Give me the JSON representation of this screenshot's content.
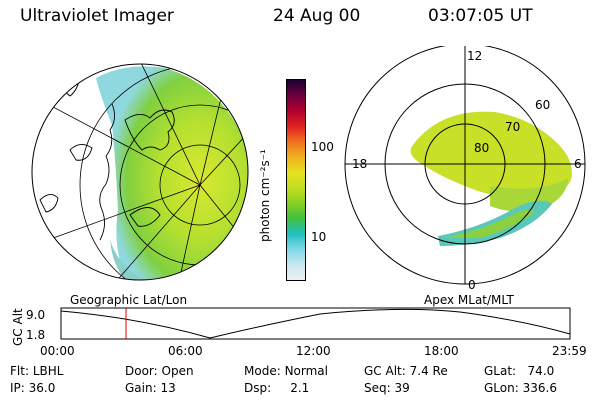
{
  "header": {
    "title": "Ultraviolet Imager",
    "date": "24 Aug 00",
    "time": "03:07:05 UT"
  },
  "colorbar": {
    "label": "photon cm⁻²s⁻¹",
    "ticks": [
      "100",
      "10"
    ],
    "colors": [
      "#1a0030",
      "#6a0040",
      "#b00030",
      "#e02020",
      "#f07020",
      "#f0b020",
      "#e8e020",
      "#c0e020",
      "#88d020",
      "#40c040",
      "#20c0c0",
      "#80d8e8",
      "#c8e8f0",
      "#f0f0f0"
    ]
  },
  "geo_panel": {
    "label": "Geographic Lat/Lon",
    "aurora_color": "#9ad82c"
  },
  "polar_panel": {
    "label": "Apex MLat/MLT",
    "lat_labels": [
      "80",
      "70",
      "60"
    ],
    "mlt_labels": [
      "12",
      "18",
      "6",
      "0"
    ]
  },
  "altitude_plot": {
    "ylabel": "GC Alt",
    "yticks": [
      "9.0",
      "1.8"
    ],
    "xticks": [
      "00:00",
      "06:00",
      "12:00",
      "18:00",
      "23:59"
    ],
    "marker_time": "03:07",
    "marker_color": "#e00000"
  },
  "info": {
    "flt_label": "Flt:",
    "flt_value": "LBHL",
    "ip_label": "IP:",
    "ip_value": "36.0",
    "door_label": "Door:",
    "door_value": "Open",
    "gain_label": "Gain:",
    "gain_value": "13",
    "mode_label": "Mode:",
    "mode_value": "Normal",
    "dsp_label": "Dsp:",
    "dsp_value": "2.1",
    "gcalt_label": "GC Alt:",
    "gcalt_value": "7.4 Re",
    "seq_label": "Seq:",
    "seq_value": "39",
    "glat_label": "GLat:",
    "glat_value": "74.0",
    "glon_label": "GLon:",
    "glon_value": "336.6"
  }
}
